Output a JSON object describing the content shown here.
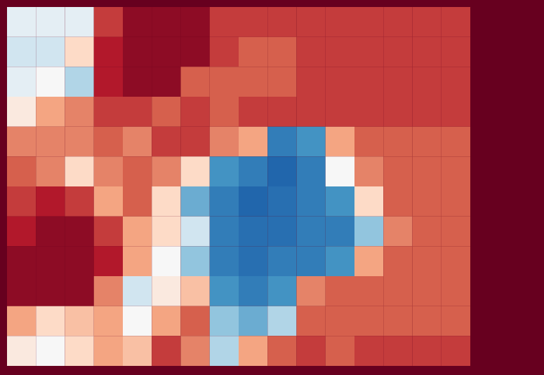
{
  "chart_data": {
    "type": "heatmap",
    "xlim": [
      0,
      16
    ],
    "ylim": [
      0,
      12
    ],
    "colorbar_range": [
      0,
      1
    ],
    "tick_labels": false,
    "cells": [
      [
        0.45,
        0.45,
        0.45,
        0.85,
        0.95,
        0.95,
        0.95,
        0.85,
        0.85,
        0.85,
        0.85,
        0.85,
        0.85,
        0.85,
        0.85,
        0.85
      ],
      [
        0.4,
        0.4,
        0.6,
        0.9,
        0.95,
        0.95,
        0.95,
        0.85,
        0.8,
        0.8,
        0.85,
        0.85,
        0.85,
        0.85,
        0.85,
        0.85
      ],
      [
        0.45,
        0.5,
        0.35,
        0.9,
        0.95,
        0.95,
        0.8,
        0.8,
        0.8,
        0.8,
        0.85,
        0.85,
        0.85,
        0.85,
        0.85,
        0.85
      ],
      [
        0.55,
        0.7,
        0.75,
        0.85,
        0.85,
        0.8,
        0.85,
        0.8,
        0.85,
        0.85,
        0.85,
        0.85,
        0.85,
        0.85,
        0.85,
        0.85
      ],
      [
        0.75,
        0.75,
        0.75,
        0.8,
        0.75,
        0.85,
        0.85,
        0.75,
        0.7,
        0.15,
        0.2,
        0.7,
        0.8,
        0.8,
        0.8,
        0.8
      ],
      [
        0.8,
        0.75,
        0.6,
        0.75,
        0.8,
        0.75,
        0.6,
        0.2,
        0.15,
        0.1,
        0.15,
        0.5,
        0.75,
        0.8,
        0.8,
        0.8
      ],
      [
        0.85,
        0.9,
        0.85,
        0.7,
        0.8,
        0.6,
        0.25,
        0.15,
        0.1,
        0.12,
        0.15,
        0.2,
        0.6,
        0.8,
        0.8,
        0.8
      ],
      [
        0.9,
        0.95,
        0.95,
        0.85,
        0.7,
        0.6,
        0.4,
        0.15,
        0.12,
        0.12,
        0.15,
        0.15,
        0.3,
        0.75,
        0.8,
        0.8
      ],
      [
        0.95,
        0.95,
        0.95,
        0.9,
        0.7,
        0.5,
        0.3,
        0.15,
        0.12,
        0.15,
        0.15,
        0.2,
        0.7,
        0.8,
        0.8,
        0.8
      ],
      [
        0.95,
        0.95,
        0.95,
        0.75,
        0.4,
        0.55,
        0.65,
        0.2,
        0.15,
        0.2,
        0.75,
        0.8,
        0.8,
        0.8,
        0.8,
        0.8
      ],
      [
        0.7,
        0.6,
        0.65,
        0.7,
        0.5,
        0.7,
        0.8,
        0.3,
        0.25,
        0.35,
        0.8,
        0.8,
        0.8,
        0.8,
        0.8,
        0.8
      ],
      [
        0.55,
        0.5,
        0.6,
        0.7,
        0.65,
        0.85,
        0.75,
        0.35,
        0.7,
        0.8,
        0.85,
        0.8,
        0.85,
        0.85,
        0.85,
        0.85
      ]
    ]
  }
}
